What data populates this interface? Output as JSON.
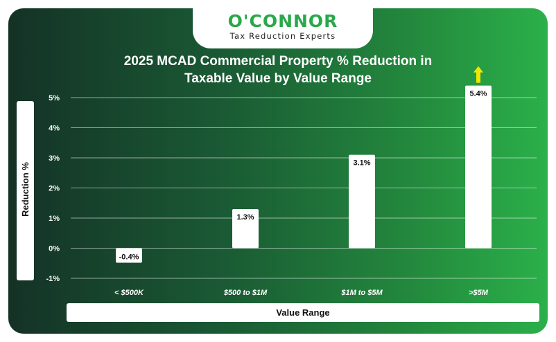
{
  "brand": {
    "name": "O'CONNOR",
    "tagline": "Tax Reduction Experts",
    "accent_color": "#2aa84a"
  },
  "chart_data": {
    "type": "bar",
    "title_line1": "2025 MCAD Commercial Property % Reduction in",
    "title_line2": "Taxable Value by Value Range",
    "xlabel": "Value Range",
    "ylabel": "Reduction %",
    "categories": [
      "< $500K",
      "$500 to $1M",
      "$1M to $5M",
      ">$5M"
    ],
    "values": [
      -0.4,
      1.3,
      3.1,
      5.4
    ],
    "data_labels": [
      "-0.4%",
      "1.3%",
      "3.1%",
      "5.4%"
    ],
    "yticks": [
      5,
      4,
      3,
      2,
      1,
      0,
      -1
    ],
    "ytick_labels": [
      "5%",
      "4%",
      "3%",
      "2%",
      "1%",
      "0%",
      "-1%"
    ],
    "ylim": [
      -1,
      5
    ],
    "grid": true,
    "annotation": "upward arrow above largest bar",
    "annotation_color": "#f2e600",
    "bar_color": "#ffffff"
  }
}
